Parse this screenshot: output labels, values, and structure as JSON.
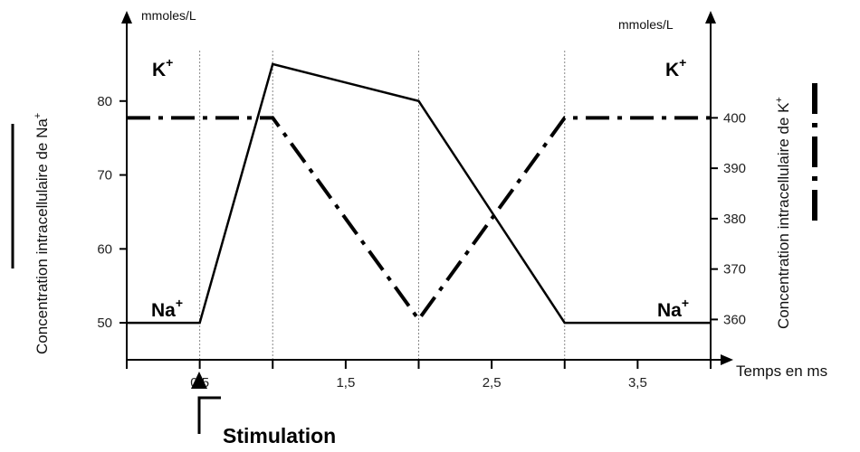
{
  "chart_data": {
    "type": "line",
    "xlabel": "Temps en ms",
    "x_ticks": [
      "0,5",
      "1,5",
      "2,5",
      "3,5"
    ],
    "xlim": [
      0,
      4
    ],
    "left_axis": {
      "label": "Concentration intracellulaire de Na",
      "label_sup": "+",
      "unit": "mmoles/L",
      "ticks": [
        "50",
        "60",
        "70",
        "80"
      ],
      "ylim": [
        45,
        90
      ]
    },
    "right_axis": {
      "label": "Concentration intracellulaire de K",
      "label_sup": "+",
      "unit": "mmoles/L",
      "ticks": [
        "360",
        "370",
        "380",
        "390",
        "400"
      ],
      "ylim": [
        352,
        418
      ]
    },
    "series": [
      {
        "name": "Na",
        "name_sup": "+",
        "axis": "left",
        "style": "solid",
        "x": [
          0,
          0.5,
          1,
          2,
          3,
          4
        ],
        "y": [
          50,
          50,
          85,
          80,
          50,
          50
        ]
      },
      {
        "name": "K",
        "name_sup": "+",
        "axis": "right",
        "style": "dash-dot",
        "x": [
          0,
          1,
          2,
          3,
          4
        ],
        "y": [
          400,
          400,
          360,
          400,
          400
        ]
      }
    ],
    "annotations": {
      "stimulation": {
        "text": "Stimulation",
        "x": 0.5
      }
    },
    "grid_x": [
      0.5,
      1,
      2,
      3
    ]
  }
}
